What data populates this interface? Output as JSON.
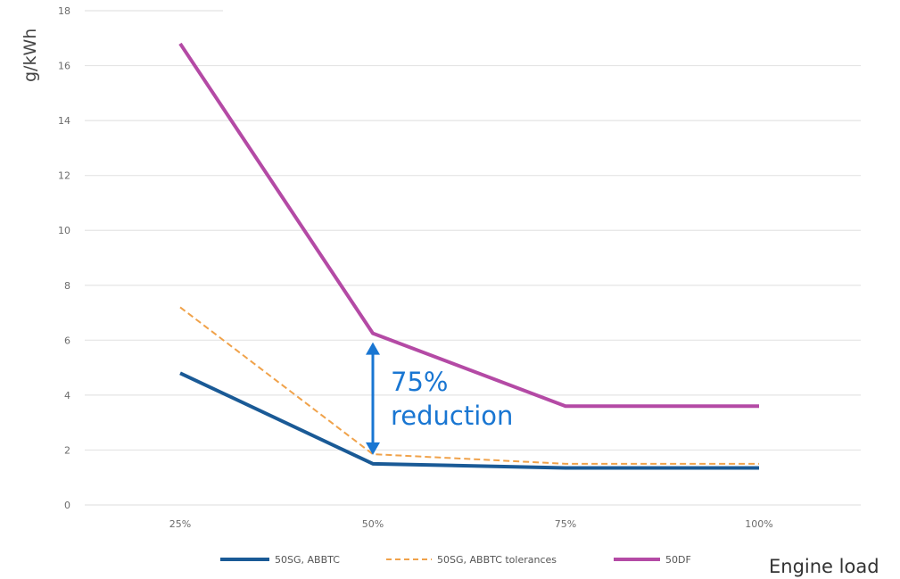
{
  "chart_data": {
    "type": "line",
    "xlabel": "Engine load",
    "ylabel": "g/kWh",
    "categories": [
      "25%",
      "50%",
      "75%",
      "100%"
    ],
    "ylim": [
      0,
      18
    ],
    "yticks": [
      0,
      2,
      4,
      6,
      8,
      10,
      12,
      14,
      16,
      18
    ],
    "grid": true,
    "legend_position": "bottom",
    "series": [
      {
        "name": "50SG, ABBTC",
        "values": [
          4.8,
          1.5,
          1.35,
          1.35
        ],
        "color": "#1a5a96",
        "style": "solid"
      },
      {
        "name": "50SG, ABBTC tolerances",
        "values": [
          7.2,
          1.85,
          1.5,
          1.5
        ],
        "color": "#f0a24a",
        "style": "dashed"
      },
      {
        "name": "50DF",
        "values": [
          16.8,
          6.25,
          3.6,
          3.6
        ],
        "color": "#b44aa5",
        "style": "solid"
      }
    ],
    "annotation": {
      "line1": "75%",
      "line2": "reduction",
      "category": "50%",
      "from": 6.25,
      "to": 1.5,
      "color": "#1976d2"
    }
  }
}
